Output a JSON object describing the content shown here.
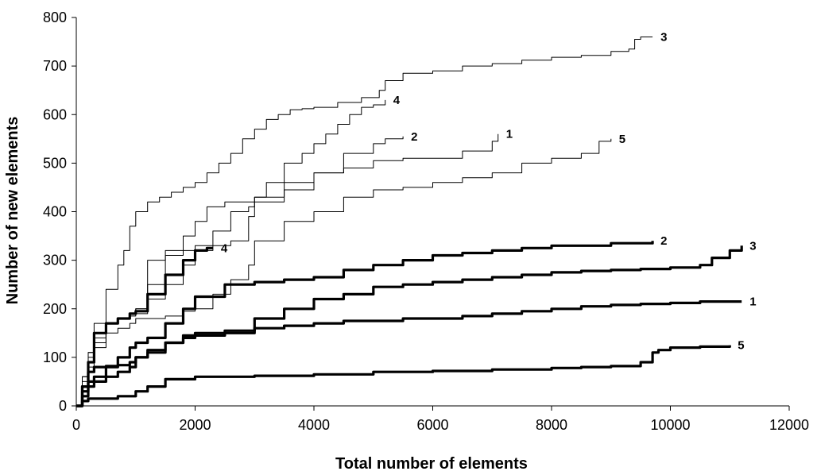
{
  "chart_data": {
    "type": "line",
    "title": "",
    "xlabel": "Total number of elements",
    "ylabel": "Number of new elements",
    "xlim": [
      0,
      12000
    ],
    "ylim": [
      0,
      800
    ],
    "xticks": [
      "0",
      "2000",
      "4000",
      "6000",
      "8000",
      "10000",
      "12000"
    ],
    "yticks": [
      "0",
      "100",
      "200",
      "300",
      "400",
      "500",
      "600",
      "700",
      "800"
    ],
    "grid": false,
    "legend": "none",
    "series": [
      {
        "label": "3",
        "style": "thin",
        "x": [
          0,
          100,
          200,
          300,
          500,
          700,
          800,
          900,
          1000,
          1200,
          1400,
          1600,
          1800,
          2000,
          2200,
          2400,
          2600,
          2800,
          3000,
          3200,
          3400,
          3600,
          3800,
          4000,
          4400,
          4800,
          5000,
          5100,
          5200,
          5500,
          6000,
          6500,
          7000,
          7500,
          8000,
          8500,
          9000,
          9300,
          9400,
          9500,
          9700
        ],
        "y": [
          0,
          60,
          110,
          170,
          240,
          290,
          320,
          370,
          400,
          420,
          430,
          440,
          450,
          460,
          480,
          500,
          520,
          550,
          570,
          590,
          600,
          610,
          612,
          615,
          625,
          635,
          635,
          650,
          670,
          685,
          690,
          700,
          705,
          712,
          718,
          722,
          730,
          735,
          755,
          760,
          760
        ]
      },
      {
        "label": "4",
        "style": "thin",
        "x": [
          0,
          100,
          200,
          300,
          500,
          700,
          900,
          1000,
          1200,
          1500,
          1800,
          2000,
          2300,
          2600,
          2900,
          3000,
          3200,
          3500,
          3800,
          4000,
          4200,
          4400,
          4600,
          4800,
          5000,
          5200
        ],
        "y": [
          0,
          40,
          80,
          120,
          170,
          180,
          190,
          200,
          220,
          250,
          290,
          330,
          360,
          400,
          410,
          430,
          460,
          500,
          520,
          540,
          560,
          580,
          600,
          615,
          620,
          630
        ]
      },
      {
        "label": "2",
        "style": "thin",
        "x": [
          0,
          100,
          200,
          300,
          500,
          700,
          900,
          1000,
          1200,
          1500,
          1800,
          2000,
          2200,
          2500,
          3000,
          3500,
          4000,
          4500,
          5000,
          5200,
          5500
        ],
        "y": [
          0,
          60,
          110,
          150,
          170,
          180,
          190,
          200,
          250,
          310,
          350,
          380,
          410,
          420,
          430,
          445,
          480,
          520,
          540,
          550,
          555
        ]
      },
      {
        "label": "1",
        "style": "thin",
        "x": [
          0,
          100,
          200,
          300,
          500,
          700,
          900,
          1000,
          1200,
          1500,
          1800,
          2000,
          2300,
          2600,
          2900,
          3000,
          3500,
          4000,
          4500,
          5000,
          5500,
          6000,
          6500,
          7000,
          7100
        ],
        "y": [
          0,
          50,
          100,
          140,
          170,
          180,
          185,
          190,
          300,
          320,
          320,
          320,
          330,
          340,
          390,
          420,
          460,
          480,
          490,
          505,
          510,
          510,
          525,
          545,
          560
        ]
      },
      {
        "label": "5",
        "style": "thin",
        "x": [
          0,
          100,
          200,
          300,
          500,
          700,
          900,
          1000,
          1200,
          1500,
          1800,
          2000,
          2300,
          2600,
          2900,
          3000,
          3500,
          4000,
          4500,
          5000,
          5500,
          6000,
          6500,
          7000,
          7500,
          8000,
          8500,
          8800,
          9000
        ],
        "y": [
          0,
          40,
          90,
          130,
          150,
          160,
          170,
          180,
          180,
          185,
          195,
          200,
          230,
          260,
          290,
          340,
          380,
          400,
          430,
          445,
          450,
          460,
          470,
          480,
          500,
          510,
          520,
          545,
          550
        ]
      },
      {
        "label": "4",
        "style": "thick",
        "x": [
          0,
          100,
          200,
          300,
          500,
          700,
          900,
          1000,
          1200,
          1500,
          1800,
          2000,
          2200,
          2300
        ],
        "y": [
          0,
          40,
          90,
          150,
          170,
          180,
          190,
          195,
          230,
          270,
          300,
          320,
          325,
          325
        ]
      },
      {
        "label": "2",
        "style": "thick",
        "x": [
          0,
          100,
          200,
          300,
          500,
          700,
          900,
          1000,
          1200,
          1500,
          1800,
          2000,
          2500,
          3000,
          3500,
          4000,
          4500,
          5000,
          5500,
          6000,
          6500,
          7000,
          7500,
          8000,
          8500,
          9000,
          9500,
          9700
        ],
        "y": [
          0,
          30,
          50,
          60,
          80,
          100,
          120,
          130,
          140,
          170,
          200,
          225,
          250,
          255,
          260,
          265,
          280,
          290,
          300,
          310,
          315,
          320,
          325,
          330,
          330,
          335,
          335,
          340
        ]
      },
      {
        "label": "3",
        "style": "thick",
        "x": [
          0,
          100,
          200,
          300,
          500,
          700,
          900,
          1000,
          1200,
          1500,
          1800,
          2000,
          2500,
          3000,
          3500,
          4000,
          4500,
          5000,
          5500,
          6000,
          6500,
          7000,
          7500,
          8000,
          8500,
          9000,
          9500,
          10000,
          10500,
          10700,
          11000,
          11200
        ],
        "y": [
          0,
          20,
          40,
          50,
          60,
          70,
          80,
          100,
          110,
          130,
          145,
          150,
          155,
          180,
          200,
          220,
          230,
          245,
          250,
          255,
          260,
          265,
          270,
          275,
          278,
          280,
          282,
          285,
          290,
          305,
          320,
          330
        ]
      },
      {
        "label": "1",
        "style": "thick",
        "x": [
          0,
          100,
          200,
          300,
          500,
          700,
          900,
          1000,
          1200,
          1500,
          1800,
          2000,
          2500,
          3000,
          3500,
          4000,
          4500,
          5000,
          5500,
          6000,
          6500,
          7000,
          7500,
          8000,
          8500,
          9000,
          9500,
          10000,
          10500,
          11000,
          11200
        ],
        "y": [
          0,
          40,
          70,
          80,
          82,
          84,
          90,
          100,
          115,
          130,
          140,
          145,
          150,
          160,
          165,
          170,
          175,
          175,
          180,
          180,
          185,
          190,
          195,
          200,
          205,
          208,
          210,
          212,
          215,
          215,
          215
        ]
      },
      {
        "label": "5",
        "style": "thick",
        "x": [
          0,
          100,
          200,
          300,
          500,
          700,
          900,
          1000,
          1200,
          1400,
          1500,
          2000,
          3000,
          4000,
          5000,
          6000,
          7000,
          8000,
          8500,
          9000,
          9500,
          9700,
          9800,
          10000,
          10500,
          11000
        ],
        "y": [
          0,
          10,
          15,
          15,
          15,
          20,
          20,
          30,
          40,
          40,
          55,
          60,
          62,
          65,
          70,
          72,
          75,
          78,
          80,
          82,
          90,
          110,
          115,
          120,
          122,
          125
        ]
      }
    ]
  }
}
